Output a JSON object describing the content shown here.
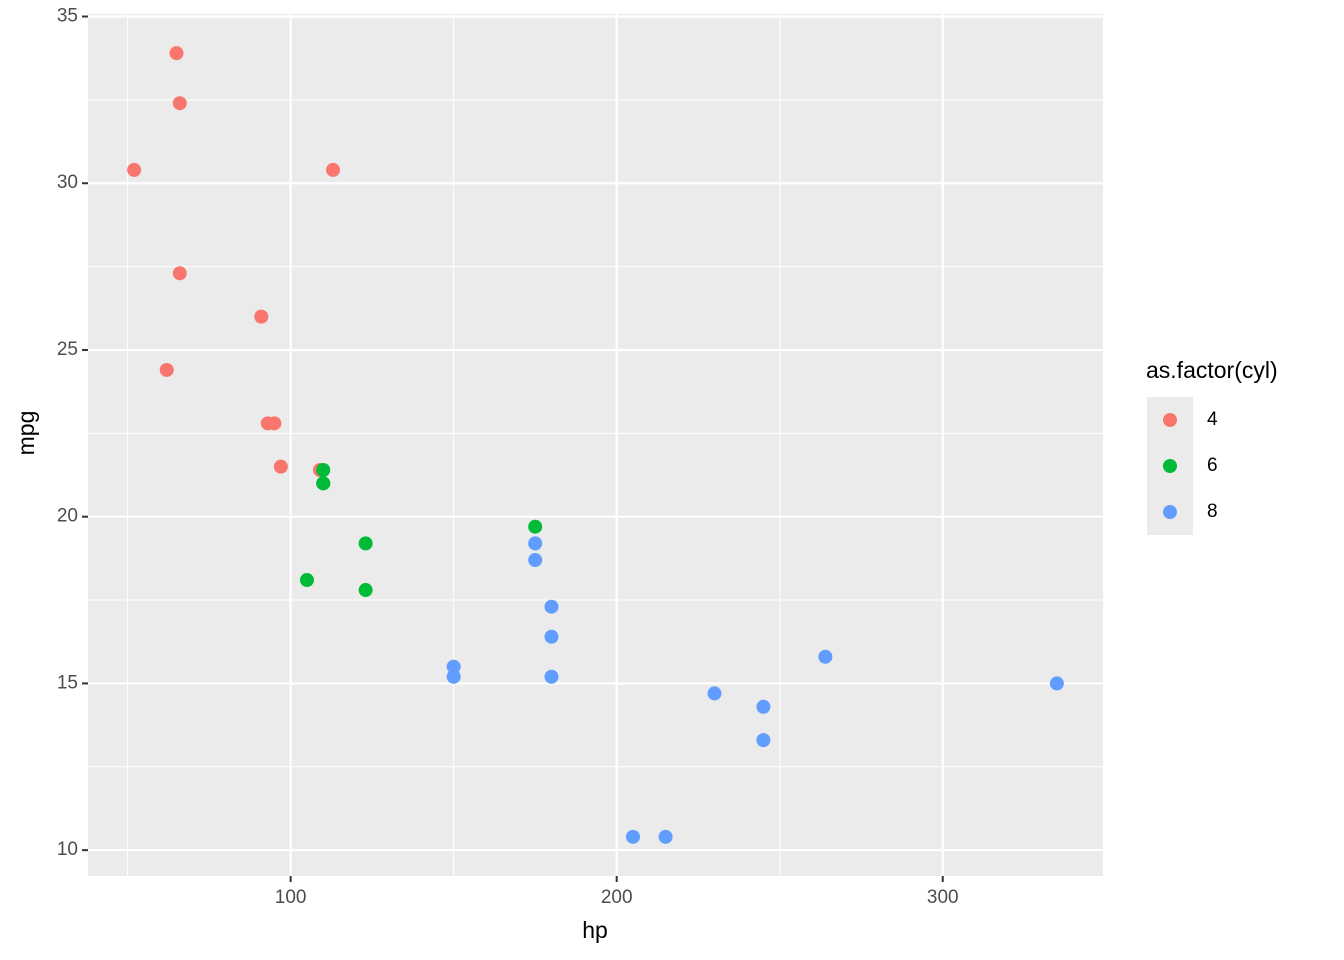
{
  "chart_data": {
    "type": "scatter",
    "x_label": "hp",
    "y_label": "mpg",
    "legend_title": "as.factor(cyl)",
    "legend": "right",
    "xlim": [
      37.85,
      349.15
    ],
    "ylim": [
      9.225,
      35.075
    ],
    "xticks": [
      100,
      200,
      300
    ],
    "yticks": [
      10,
      15,
      20,
      25,
      30,
      35
    ],
    "xminor": [
      50,
      150,
      250
    ],
    "yminor": [
      12.5,
      17.5,
      22.5,
      27.5,
      32.5
    ],
    "grid": true,
    "series": [
      {
        "name": "4",
        "color": "#F8766D",
        "x": [
          93,
          62,
          95,
          66,
          52,
          65,
          97,
          66,
          91,
          113,
          109
        ],
        "y": [
          22.8,
          24.4,
          22.8,
          32.4,
          30.4,
          33.9,
          21.5,
          27.3,
          26.0,
          30.4,
          21.4
        ]
      },
      {
        "name": "6",
        "color": "#00BA38",
        "x": [
          110,
          110,
          110,
          105,
          123,
          123,
          175
        ],
        "y": [
          21.0,
          21.0,
          21.4,
          18.1,
          19.2,
          17.8,
          19.7
        ]
      },
      {
        "name": "8",
        "color": "#619CFF",
        "x": [
          175,
          245,
          180,
          180,
          180,
          205,
          215,
          230,
          150,
          150,
          245,
          175,
          264,
          335
        ],
        "y": [
          18.7,
          14.3,
          16.4,
          17.3,
          15.2,
          10.4,
          10.4,
          14.7,
          15.5,
          15.2,
          13.3,
          19.2,
          15.8,
          15.0
        ]
      }
    ]
  }
}
